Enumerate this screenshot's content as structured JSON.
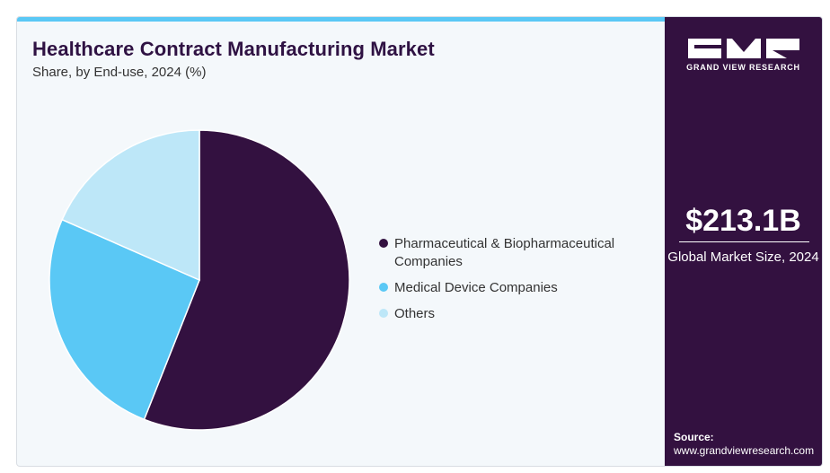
{
  "header": {
    "title": "Healthcare Contract Manufacturing Market",
    "subtitle": "Share, by End-use, 2024 (%)"
  },
  "chart_data": {
    "type": "pie",
    "title": "Healthcare Contract Manufacturing Market",
    "subtitle": "Share, by End-use, 2024 (%)",
    "start_angle_deg": 0,
    "direction": "clockwise",
    "legend_position": "right",
    "series": [
      {
        "name": "Pharmaceutical & Biopharmaceutical Companies",
        "value": 56.0,
        "color": "#331140"
      },
      {
        "name": "Medical Device Companies",
        "value": 25.6,
        "color": "#5ac8f5"
      },
      {
        "name": "Others",
        "value": 18.4,
        "color": "#bde7f8"
      }
    ]
  },
  "legend": {
    "items": [
      {
        "label": "Pharmaceutical & Biopharmaceutical Companies",
        "color": "#331140"
      },
      {
        "label": "Medical Device Companies",
        "color": "#5ac8f5"
      },
      {
        "label": "Others",
        "color": "#bde7f8"
      }
    ]
  },
  "sidebar": {
    "brand": "GRAND VIEW RESEARCH",
    "logo_icon": "gvr-logo-icon",
    "market_size": "$213.1B",
    "market_size_caption": "Global Market Size, 2024",
    "source_label": "Source:",
    "source_url": "www.grandviewresearch.com"
  },
  "colors": {
    "brand_dark": "#331140",
    "accent": "#5ac8f5",
    "light_accent": "#bde7f8",
    "panel_bg": "#f4f8fb"
  }
}
